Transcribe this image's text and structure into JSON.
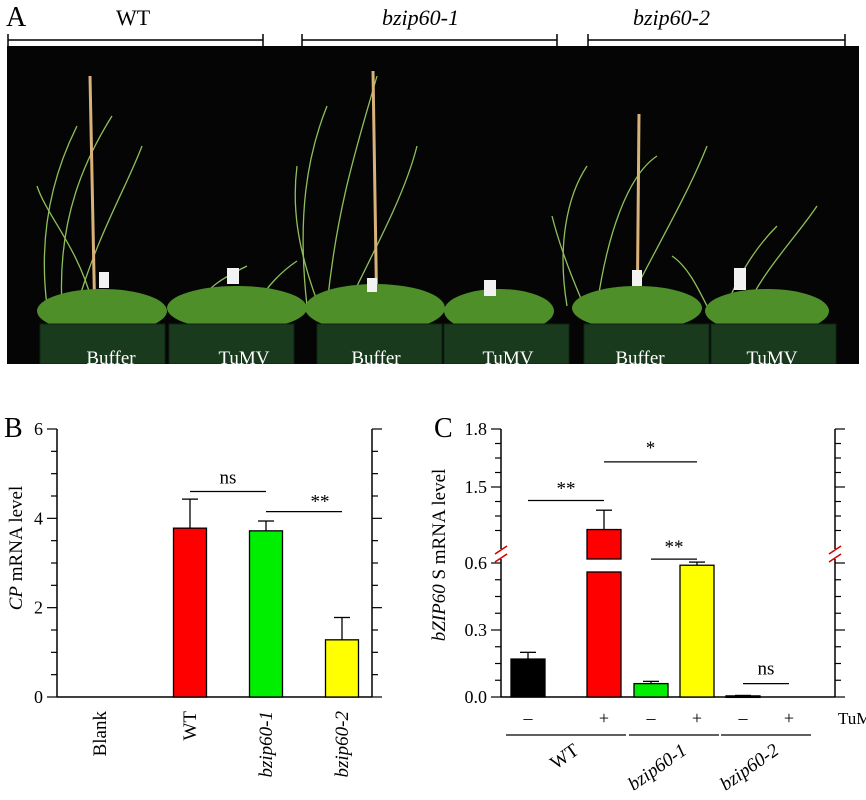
{
  "panel_a": {
    "letter": "A",
    "genotypes": [
      "WT",
      "bzip60-1",
      "bzip60-2"
    ],
    "pot_labels": [
      "Buffer",
      "TuMV",
      "Buffer",
      "TuMV",
      "Buffer",
      "TuMV"
    ]
  },
  "chart_data": [
    {
      "panel": "B",
      "type": "bar",
      "ylabel_italic": "CP",
      "ylabel_rest": " mRNA level",
      "categories": [
        "Blank",
        "WT",
        "bzip60-1",
        "bzip60-2"
      ],
      "values": [
        0,
        3.78,
        3.72,
        1.28
      ],
      "errors": [
        0,
        0.65,
        0.22,
        0.5
      ],
      "colors": [
        "#ffffff",
        "#ff0000",
        "#00ee00",
        "#ffff00"
      ],
      "ylim": [
        0,
        6
      ],
      "yticks": [
        "0",
        "2",
        "4",
        "6"
      ],
      "annotations": [
        "ns",
        "**"
      ]
    },
    {
      "panel": "C",
      "type": "bar",
      "ylabel_italic": "bZIP60",
      "ylabel_rest": " S mRNA level",
      "groups": [
        "WT",
        "bzip60-1",
        "bzip60-2"
      ],
      "treatment_label": "TuMV",
      "treatment_marks": [
        "–",
        "+",
        "–",
        "+",
        "–",
        "+"
      ],
      "values": [
        0.17,
        1.28,
        0.06,
        0.59,
        0.005,
        0.0
      ],
      "errors": [
        0.03,
        0.1,
        0.01,
        0.04,
        0.002,
        0.0
      ],
      "colors": [
        "#000000",
        "#ff0000",
        "#00ee00",
        "#ffff00",
        "#000000",
        "#ffffff"
      ],
      "axis_break": "between 0.6 and 1.5",
      "yticks": [
        "0.0",
        "0.3",
        "0.6",
        "1.5",
        "1.8"
      ],
      "annotations": [
        "**",
        "*",
        "**",
        "ns"
      ]
    }
  ]
}
